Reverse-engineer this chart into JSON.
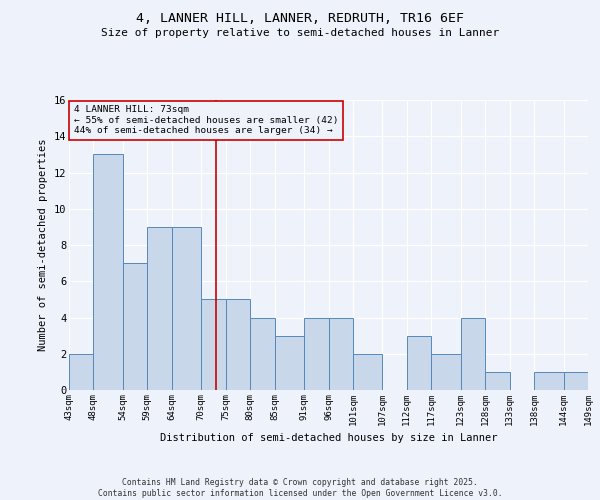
{
  "title1": "4, LANNER HILL, LANNER, REDRUTH, TR16 6EF",
  "title2": "Size of property relative to semi-detached houses in Lanner",
  "xlabel": "Distribution of semi-detached houses by size in Lanner",
  "ylabel": "Number of semi-detached properties",
  "bins": [
    43,
    48,
    54,
    59,
    64,
    70,
    75,
    80,
    85,
    91,
    96,
    101,
    107,
    112,
    117,
    123,
    128,
    133,
    138,
    144,
    149
  ],
  "counts": [
    2,
    13,
    7,
    9,
    9,
    5,
    5,
    4,
    3,
    4,
    4,
    2,
    0,
    3,
    2,
    4,
    1,
    0,
    1,
    1
  ],
  "bar_color": "#c8d8ea",
  "bar_edge_color": "#5588bb",
  "property_size": 73,
  "annotation_text": "4 LANNER HILL: 73sqm\n← 55% of semi-detached houses are smaller (42)\n44% of semi-detached houses are larger (34) →",
  "vline_color": "#cc0000",
  "ylim": [
    0,
    16
  ],
  "yticks": [
    0,
    2,
    4,
    6,
    8,
    10,
    12,
    14,
    16
  ],
  "background_color": "#eef2fa",
  "footer_text": "Contains HM Land Registry data © Crown copyright and database right 2025.\nContains public sector information licensed under the Open Government Licence v3.0.",
  "tick_labels": [
    "43sqm",
    "48sqm",
    "54sqm",
    "59sqm",
    "64sqm",
    "70sqm",
    "75sqm",
    "80sqm",
    "85sqm",
    "91sqm",
    "96sqm",
    "101sqm",
    "107sqm",
    "112sqm",
    "117sqm",
    "123sqm",
    "128sqm",
    "133sqm",
    "138sqm",
    "144sqm",
    "149sqm"
  ]
}
